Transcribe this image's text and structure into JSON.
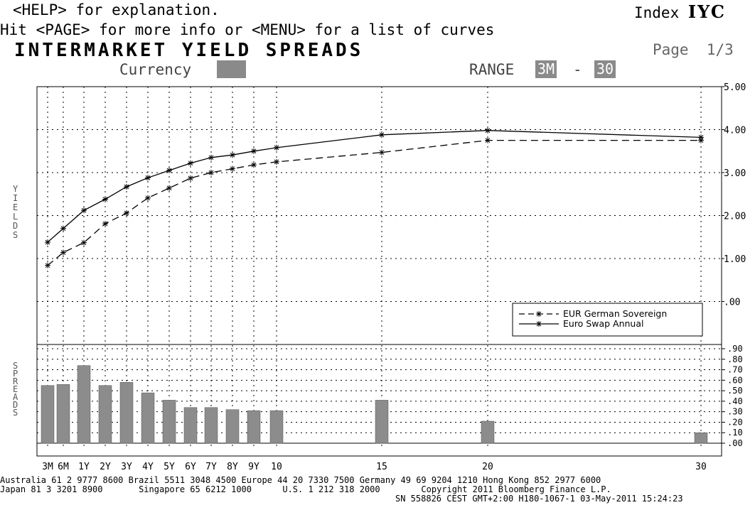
{
  "header": {
    "help_line": "<HELP> for explanation.",
    "page_line": "Hit <PAGE> for more info or <MENU> for a list of curves",
    "title": "INTERMARKET YIELD SPREADS",
    "index_label": "Index",
    "index_code": "IYC",
    "page_indicator": "Page  1/3",
    "currency_label": "Currency",
    "range_label": "RANGE",
    "range_from": "3M",
    "range_sep": "-",
    "range_to": "30"
  },
  "footer": {
    "line1": "Australia 61 2 9777 8600 Brazil 5511 3048 4500 Europe 44 20 7330 7500 Germany 49 69 9204 1210 Hong Kong 852 2977 6000",
    "line2": "Japan 81 3 3201 8900       Singapore 65 6212 1000      U.S. 1 212 318 2000        Copyright 2011 Bloomberg Finance L.P.",
    "line3": "SN 558826 CEST GMT+2:00 H180-1067-1 03-May-2011 15:24:23"
  },
  "colors": {
    "background": "#ffffff",
    "line": "#000000",
    "bars": "#8c8c8c",
    "header_box": "#8a8a8a"
  },
  "chart_data": [
    {
      "type": "line",
      "ylabel": "YIELDS",
      "ylim": [
        -1.0,
        5.0
      ],
      "yticks": [
        ".00",
        "1.00",
        "2.00",
        "3.00",
        "4.00",
        "5.00"
      ],
      "x": [
        0.25,
        0.5,
        1,
        2,
        3,
        4,
        5,
        6,
        7,
        8,
        9,
        10,
        15,
        20,
        30
      ],
      "xtick_labels": [
        "3M",
        "6M",
        "1Y",
        "2Y",
        "3Y",
        "4Y",
        "5Y",
        "6Y",
        "7Y",
        "8Y",
        "9Y",
        "10",
        "15",
        "20",
        "30"
      ],
      "legend_position": "lower-right",
      "series": [
        {
          "name": "EUR German Sovereign",
          "style": "dashed",
          "values": [
            0.84,
            1.14,
            1.37,
            1.81,
            2.06,
            2.41,
            2.64,
            2.87,
            3.0,
            3.09,
            3.18,
            3.25,
            3.47,
            3.75,
            3.75
          ]
        },
        {
          "name": "Euro Swap Annual",
          "style": "solid",
          "values": [
            1.38,
            1.7,
            2.12,
            2.38,
            2.67,
            2.88,
            3.05,
            3.22,
            3.35,
            3.41,
            3.5,
            3.58,
            3.88,
            3.98,
            3.82
          ]
        }
      ]
    },
    {
      "type": "bar",
      "ylabel": "SPREADS",
      "ylim": [
        0,
        0.9
      ],
      "yticks": [
        ".00",
        ".10",
        ".20",
        ".30",
        ".40",
        ".50",
        ".60",
        ".70",
        ".80",
        ".90"
      ],
      "x": [
        0.25,
        0.5,
        1,
        2,
        3,
        4,
        5,
        6,
        7,
        8,
        9,
        10,
        15,
        20,
        30
      ],
      "values": [
        0.55,
        0.56,
        0.74,
        0.55,
        0.58,
        0.48,
        0.41,
        0.34,
        0.34,
        0.32,
        0.31,
        0.31,
        0.41,
        0.21,
        0.1
      ]
    }
  ]
}
